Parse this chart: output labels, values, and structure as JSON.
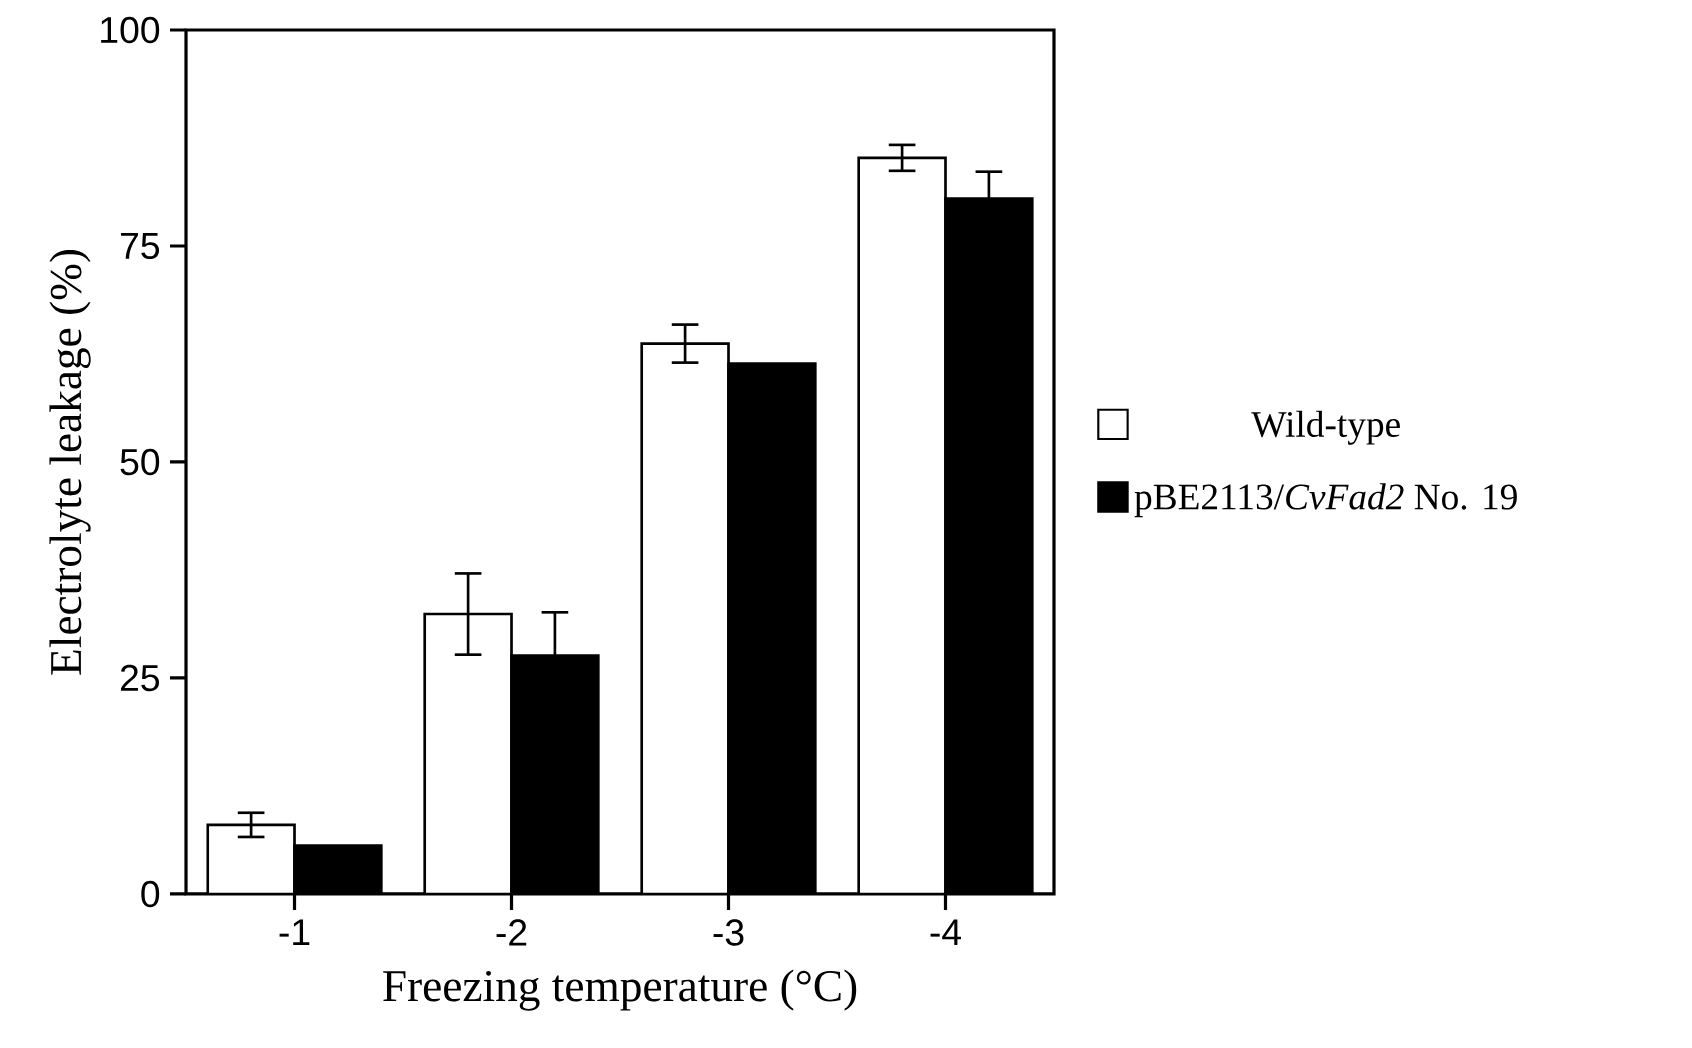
{
  "chart_data": {
    "type": "bar",
    "xlabel": "Freezing temperature (°C)",
    "ylabel": "Electrolyte leakage (%)",
    "categories": [
      "-1",
      "-2",
      "-3",
      "-4"
    ],
    "series": [
      {
        "name": "Wild-type",
        "color": "#ffffff",
        "values": [
          8,
          32.4,
          63.7,
          85.2
        ],
        "errors": [
          1.4,
          4.7,
          2.2,
          1.5
        ]
      },
      {
        "name": "pBE2113/*CvFad2* No. 19",
        "color": "#000000",
        "values": [
          5.6,
          27.6,
          61.4,
          80.5
        ],
        "errors": [
          null,
          5,
          null,
          3.1
        ]
      }
    ],
    "ylim": [
      0,
      100
    ],
    "yticks": [
      0,
      25,
      50,
      75,
      100
    ],
    "legend": "right",
    "grid": false
  }
}
